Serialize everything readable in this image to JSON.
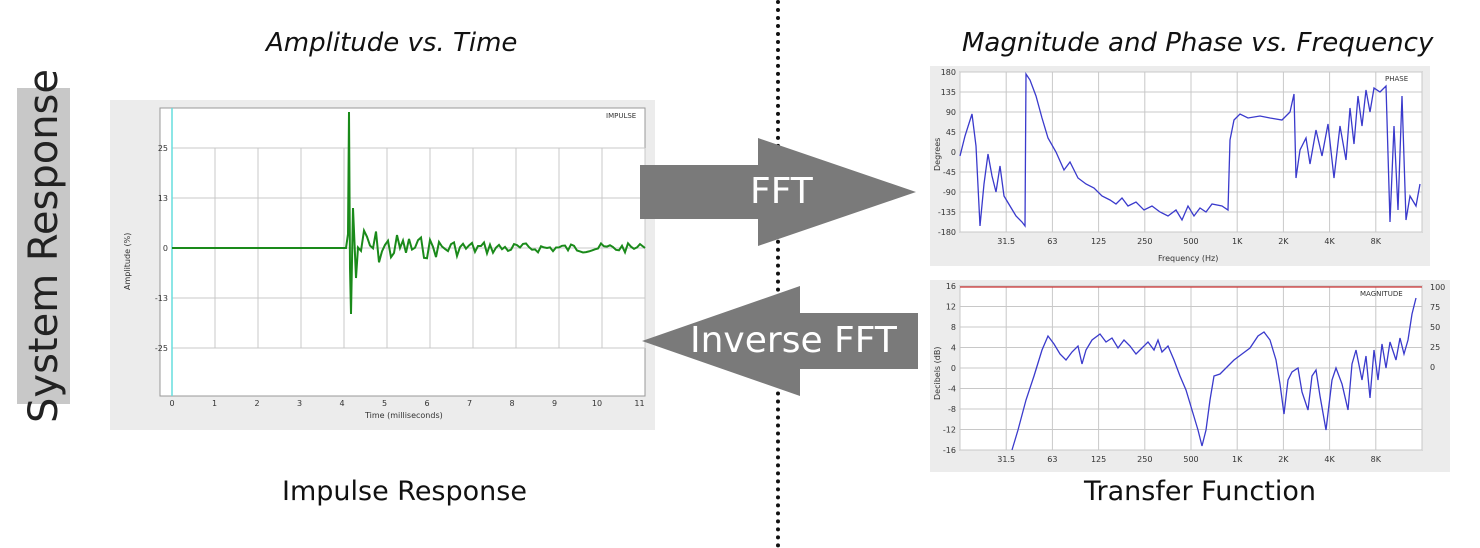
{
  "side_label": "System Response",
  "left": {
    "heading": "Amplitude vs. Time",
    "caption": "Impulse Response",
    "panel_title": "IMPULSE",
    "xlabel": "Time (milliseconds)",
    "ylabel": "Amplitude (%)",
    "yticks": [
      "25",
      "13",
      "0",
      "-13",
      "-25"
    ],
    "xticks": [
      "0",
      "1",
      "2",
      "3",
      "4",
      "5",
      "6",
      "7",
      "8",
      "9",
      "10",
      "11"
    ]
  },
  "right": {
    "heading": "Magnitude and Phase vs. Frequency",
    "caption": "Transfer Function",
    "phase": {
      "panel_title": "PHASE",
      "ylabel": "Degrees",
      "xlabel": "Frequency (Hz)",
      "yticks": [
        "180",
        "135",
        "90",
        "45",
        "0",
        "-45",
        "-90",
        "-135",
        "-180"
      ],
      "xticks": [
        "31.5",
        "63",
        "125",
        "250",
        "500",
        "1K",
        "2K",
        "4K",
        "8K"
      ]
    },
    "magnitude": {
      "panel_title": "MAGNITUDE",
      "ylabel": "Decibels (dB)",
      "yticks": [
        "16",
        "12",
        "8",
        "4",
        "0",
        "-4",
        "-8",
        "-12",
        "-16"
      ],
      "yticks_right": [
        "100",
        "75",
        "50",
        "25",
        "0"
      ],
      "xticks": [
        "31.5",
        "63",
        "125",
        "250",
        "500",
        "1K",
        "2K",
        "4K",
        "8K"
      ]
    }
  },
  "arrows": {
    "forward": "FFT",
    "inverse": "Inverse FFT",
    "color": "#7a7a7a"
  },
  "colors": {
    "impulse_trace": "#1a8a1a",
    "freq_trace": "#3a3acc",
    "grid": "#c8c8c8",
    "plot_bg": "#ffffff",
    "frame_bg": "#e8e8e8",
    "ref_line": "#cc3333"
  }
}
